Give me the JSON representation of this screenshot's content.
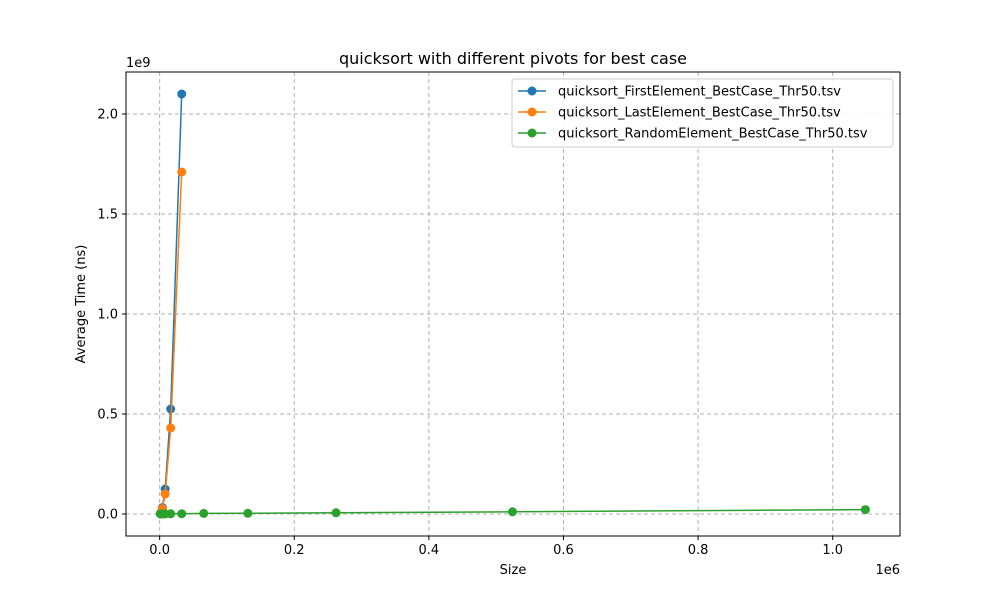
{
  "chart_data": {
    "type": "line",
    "title": "quicksort with different pivots for best case",
    "xlabel": "Size",
    "ylabel": "Average Time (ns)",
    "x_offset_label": "1e6",
    "y_offset_label": "1e9",
    "xlim": [
      -50000,
      1100000
    ],
    "ylim": [
      -110000000,
      2210000000
    ],
    "x_ticks": [
      0,
      200000,
      400000,
      600000,
      800000,
      1000000
    ],
    "x_tick_labels": [
      "0.0",
      "0.2",
      "0.4",
      "0.6",
      "0.8",
      "1.0"
    ],
    "y_ticks": [
      0,
      500000000,
      1000000000,
      1500000000,
      2000000000
    ],
    "y_tick_labels": [
      "0.0",
      "0.5",
      "1.0",
      "1.5",
      "2.0"
    ],
    "grid": true,
    "legend_position": "top-right",
    "series": [
      {
        "name": "quicksort_FirstElement_BestCase_Thr50.tsv",
        "color": "#1f77b4",
        "x": [
          1024,
          2048,
          4096,
          8192,
          16384,
          32768
        ],
        "y": [
          2000000,
          8000000,
          32000000,
          125000000,
          525000000,
          2100000000
        ]
      },
      {
        "name": "quicksort_LastElement_BestCase_Thr50.tsv",
        "color": "#ff7f0e",
        "x": [
          1024,
          2048,
          4096,
          8192,
          16384,
          32768
        ],
        "y": [
          2000000,
          7000000,
          27000000,
          100000000,
          430000000,
          1710000000
        ]
      },
      {
        "name": "quicksort_RandomElement_BestCase_Thr50.tsv",
        "color": "#2ca02c",
        "x": [
          1024,
          2048,
          4096,
          8192,
          16384,
          32768,
          65536,
          131072,
          262144,
          524288,
          1048576
        ],
        "y": [
          100000,
          200000,
          300000,
          500000,
          1000000,
          1500000,
          3000000,
          3500000,
          6000000,
          11000000,
          22000000
        ]
      }
    ]
  }
}
